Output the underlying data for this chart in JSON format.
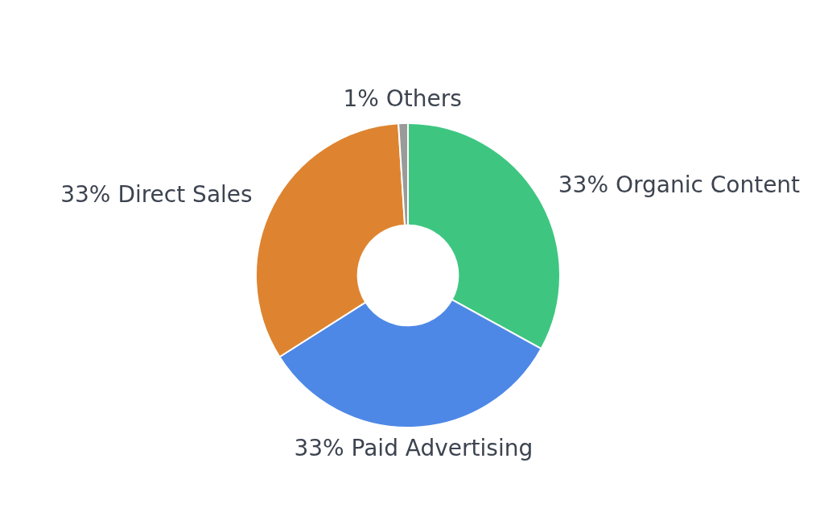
{
  "chart_data": {
    "type": "donut",
    "categories": [
      "Organic Content",
      "Paid Advertising",
      "Direct Sales",
      "Others"
    ],
    "values": [
      33,
      33,
      33,
      1
    ],
    "value_labels": [
      "33%",
      "33%",
      "33%",
      "1%"
    ],
    "colors": [
      "#3ec681",
      "#4e88e6",
      "#de8430",
      "#9a9a9a"
    ],
    "legend": false
  }
}
